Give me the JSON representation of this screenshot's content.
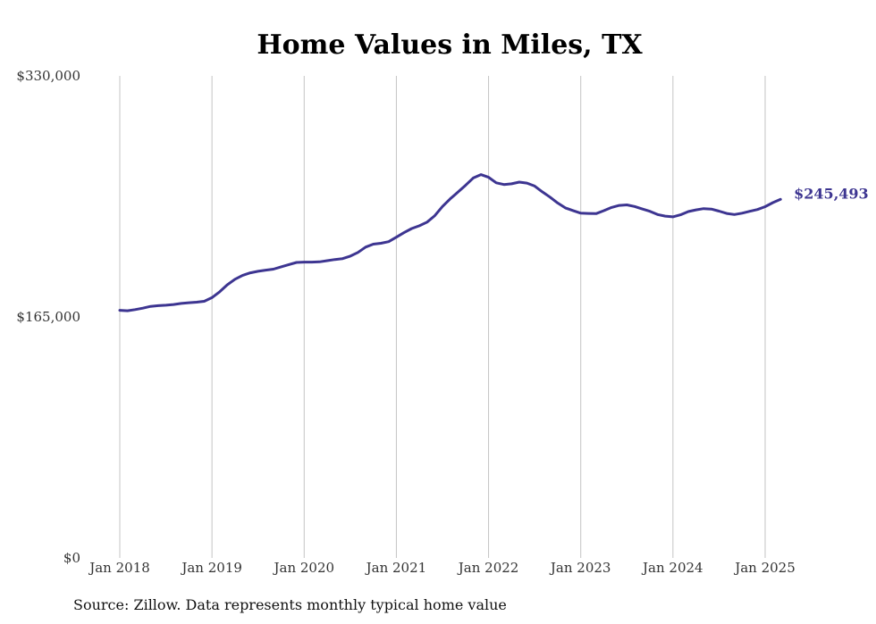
{
  "chart_data": {
    "type": "line",
    "title": "Home Values in Miles, TX",
    "xlabel": "",
    "ylabel": "",
    "ylim": [
      0,
      330000
    ],
    "yticks": [
      0,
      165000,
      330000
    ],
    "ytick_labels": [
      "$0",
      "$165,000",
      "$330,000"
    ],
    "xticks": [
      "2018-01",
      "2019-01",
      "2020-01",
      "2021-01",
      "2022-01",
      "2023-01",
      "2024-01",
      "2025-01"
    ],
    "xtick_labels": [
      "Jan 2018",
      "Jan 2019",
      "Jan 2020",
      "Jan 2021",
      "Jan 2022",
      "Jan 2023",
      "Jan 2024",
      "Jan 2025"
    ],
    "grid": "vertical",
    "line_color": "#3d3591",
    "end_label": "$245,493",
    "series": [
      {
        "x": [
          "2018-01",
          "2018-02",
          "2018-03",
          "2018-04",
          "2018-05",
          "2018-06",
          "2018-07",
          "2018-08",
          "2018-09",
          "2018-10",
          "2018-11",
          "2018-12",
          "2019-01",
          "2019-02",
          "2019-03",
          "2019-04",
          "2019-05",
          "2019-06",
          "2019-07",
          "2019-08",
          "2019-09",
          "2019-10",
          "2019-11",
          "2019-12",
          "2020-01",
          "2020-02",
          "2020-03",
          "2020-04",
          "2020-05",
          "2020-06",
          "2020-07",
          "2020-08",
          "2020-09",
          "2020-10",
          "2020-11",
          "2020-12",
          "2021-01",
          "2021-02",
          "2021-03",
          "2021-04",
          "2021-05",
          "2021-06",
          "2021-07",
          "2021-08",
          "2021-09",
          "2021-10",
          "2021-11",
          "2021-12",
          "2022-01",
          "2022-02",
          "2022-03",
          "2022-04",
          "2022-05",
          "2022-06",
          "2022-07",
          "2022-08",
          "2022-09",
          "2022-10",
          "2022-11",
          "2022-12",
          "2023-01",
          "2023-02",
          "2023-03",
          "2023-04",
          "2023-05",
          "2023-06",
          "2023-07",
          "2023-08",
          "2023-09",
          "2023-10",
          "2023-11",
          "2023-12",
          "2024-01",
          "2024-02",
          "2024-03",
          "2024-04",
          "2024-05",
          "2024-06",
          "2024-07",
          "2024-08",
          "2024-09",
          "2024-10",
          "2024-11",
          "2024-12",
          "2025-01",
          "2025-02",
          "2025-03"
        ],
        "values": [
          169500,
          169200,
          170000,
          171000,
          172200,
          172700,
          173000,
          173500,
          174200,
          174700,
          175100,
          175700,
          178200,
          182200,
          187000,
          190800,
          193500,
          195200,
          196200,
          197000,
          197700,
          199300,
          200800,
          202300,
          202500,
          202500,
          202700,
          203500,
          204300,
          204900,
          206600,
          209100,
          212800,
          214800,
          215400,
          216500,
          219600,
          222700,
          225500,
          227400,
          229900,
          234300,
          240600,
          245800,
          250400,
          255100,
          260100,
          262400,
          260600,
          256800,
          255600,
          256100,
          257300,
          256600,
          254600,
          250600,
          247000,
          243000,
          239600,
          237800,
          236000,
          235800,
          235700,
          237700,
          239900,
          241300,
          241700,
          240600,
          238900,
          237300,
          235100,
          234000,
          233500,
          234900,
          237100,
          238300,
          239100,
          238800,
          237400,
          235800,
          235100,
          236000,
          237300,
          238500,
          240500,
          243200,
          245493
        ]
      }
    ]
  },
  "source_note": "Source: Zillow. Data represents monthly typical home value"
}
